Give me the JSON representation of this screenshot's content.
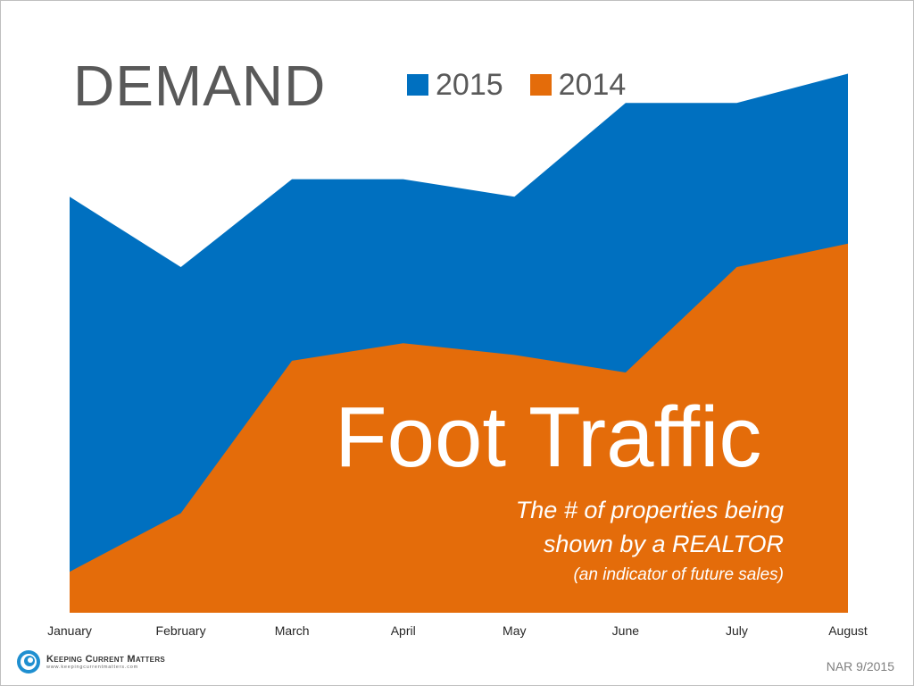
{
  "title": "DEMAND",
  "legend": [
    {
      "label": "2015",
      "color": "#0070c0"
    },
    {
      "label": "2014",
      "color": "#e46c0a"
    }
  ],
  "overlay": {
    "headline": "Foot Traffic",
    "line1": "The # of properties being",
    "line2": "shown by a REALTOR",
    "line3": "(an indicator of future sales)"
  },
  "chart_data": {
    "type": "area",
    "title": "DEMAND",
    "categories": [
      "January",
      "February",
      "March",
      "April",
      "May",
      "June",
      "July",
      "August"
    ],
    "series": [
      {
        "name": "2015",
        "values": [
          71,
          59,
          74,
          74,
          71,
          87,
          87,
          92
        ],
        "color": "#0070c0"
      },
      {
        "name": "2014",
        "values": [
          7,
          17,
          43,
          46,
          44,
          41,
          59,
          63
        ],
        "color": "#e46c0a"
      }
    ],
    "ylim": [
      0,
      100
    ],
    "xlabel": "",
    "ylabel": "",
    "grid": false,
    "legend_position": "top"
  },
  "brand": {
    "name": "Keeping Current Matters",
    "url": "www.keepingcurrentmatters.com"
  },
  "source": "NAR 9/2015"
}
